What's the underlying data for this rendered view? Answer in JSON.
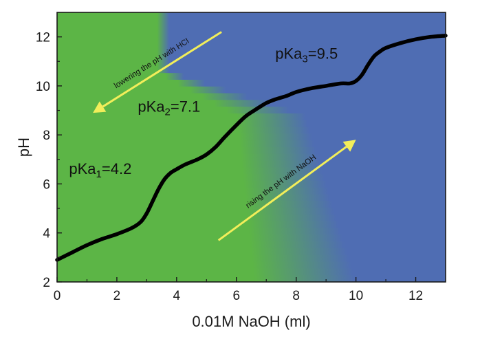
{
  "chart_data": {
    "type": "line",
    "xlabel": "0.01M NaOH (ml)",
    "ylabel": "pH",
    "xlim": [
      0,
      13
    ],
    "ylim": [
      2,
      13
    ],
    "x_ticks": [
      0,
      2,
      4,
      6,
      8,
      10,
      12
    ],
    "y_ticks": [
      2,
      4,
      6,
      8,
      10,
      12
    ],
    "grid": false,
    "series": [
      {
        "x": [
          0,
          0.5,
          1,
          1.5,
          2,
          2.5,
          2.8,
          3.0,
          3.2,
          3.4,
          3.6,
          3.8,
          4.0,
          4.3,
          4.7,
          5.0,
          5.3,
          5.6,
          6.0,
          6.3,
          6.6,
          7.0,
          7.3,
          7.7,
          8.0,
          8.5,
          9.0,
          9.5,
          9.8,
          10.0,
          10.2,
          10.4,
          10.6,
          10.8,
          11.0,
          11.5,
          12.0,
          12.5,
          13.0
        ],
        "y": [
          2.9,
          3.2,
          3.5,
          3.75,
          3.95,
          4.2,
          4.45,
          4.8,
          5.3,
          5.8,
          6.2,
          6.45,
          6.6,
          6.8,
          7.0,
          7.2,
          7.5,
          7.9,
          8.4,
          8.75,
          9.0,
          9.3,
          9.45,
          9.6,
          9.75,
          9.9,
          10.0,
          10.1,
          10.1,
          10.2,
          10.45,
          10.85,
          11.2,
          11.4,
          11.55,
          11.75,
          11.9,
          12.0,
          12.05
        ],
        "color": "#000000"
      }
    ],
    "background_gradient": {
      "green": "#5cb546",
      "blue": "#4f6db3"
    },
    "annotations": [
      {
        "id": "pka1",
        "prefix": "pKa",
        "sub": "1",
        "suffix": "=4.2",
        "x": 0.4,
        "y": 6.4
      },
      {
        "id": "pka2",
        "prefix": "pKa",
        "sub": "2",
        "suffix": "=7.1",
        "x": 2.7,
        "y": 8.95
      },
      {
        "id": "pka3",
        "prefix": "pKa",
        "sub": "3",
        "suffix": "=9.5",
        "x": 7.3,
        "y": 11.1
      }
    ],
    "arrows": [
      {
        "id": "lower",
        "label": "lowering the pH with HCl",
        "from": [
          5.5,
          12.2
        ],
        "to": [
          1.2,
          8.9
        ],
        "color": "#f2ee5a"
      },
      {
        "id": "raise",
        "label": "rising the pH with NaOH",
        "from": [
          5.4,
          3.7
        ],
        "to": [
          10.0,
          7.8
        ],
        "color": "#f2ee5a"
      }
    ]
  }
}
